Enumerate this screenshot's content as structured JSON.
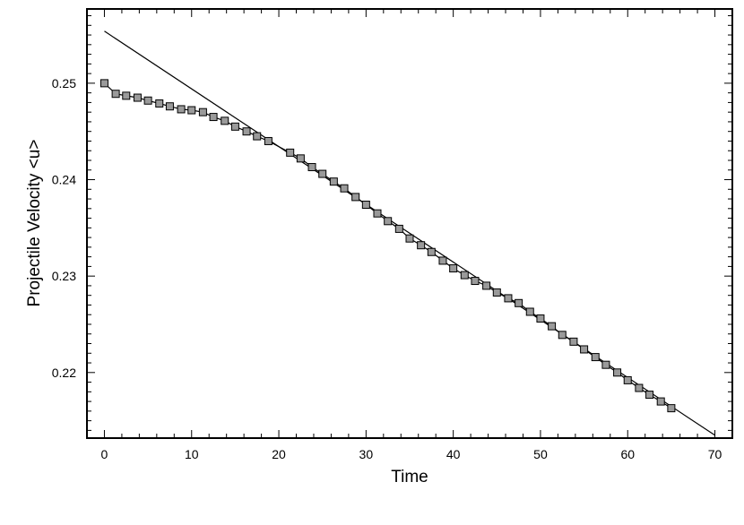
{
  "chart_data": {
    "type": "line",
    "title": "",
    "xlabel": "Time",
    "ylabel": "Projectile Velocity <u>",
    "xlim": [
      -2,
      72
    ],
    "ylim": [
      0.2132,
      0.2577
    ],
    "x_ticks": [
      0,
      10,
      20,
      30,
      40,
      50,
      60,
      70
    ],
    "x_tick_labels": [
      "0",
      "10",
      "20",
      "30",
      "40",
      "50",
      "60",
      "70"
    ],
    "y_ticks": [
      0.22,
      0.23,
      0.24,
      0.25
    ],
    "y_tick_labels": [
      "0.22",
      "0.23",
      "0.24",
      "0.25"
    ],
    "grid": false,
    "legend": null,
    "series": [
      {
        "style": "line-with-square-markers",
        "color": "#000000",
        "marker_fill": "#9a9a9a",
        "x": [
          0.0,
          1.3,
          2.5,
          3.8,
          5.0,
          6.3,
          7.5,
          8.8,
          10.0,
          11.3,
          12.5,
          13.8,
          15.0,
          16.3,
          17.5,
          18.8,
          21.3,
          22.5,
          23.8,
          25.0,
          26.3,
          27.5,
          28.8,
          30.0,
          31.3,
          32.5,
          33.8,
          35.0,
          36.3,
          37.5,
          38.8,
          40.0,
          41.3,
          42.5,
          43.8,
          45.0,
          46.3,
          47.5,
          48.8,
          50.0,
          51.3,
          52.5,
          53.8,
          55.0,
          56.3,
          57.5,
          58.8,
          60.0,
          61.3,
          62.5,
          63.8,
          65.0
        ],
        "y": [
          0.25,
          0.2489,
          0.2487,
          0.2485,
          0.2482,
          0.2479,
          0.2476,
          0.2473,
          0.2472,
          0.247,
          0.2465,
          0.2461,
          0.2455,
          0.245,
          0.2445,
          0.244,
          0.2428,
          0.2422,
          0.2413,
          0.2406,
          0.2398,
          0.2391,
          0.2382,
          0.2374,
          0.2365,
          0.2357,
          0.2349,
          0.2339,
          0.2332,
          0.2325,
          0.2316,
          0.2308,
          0.2301,
          0.2295,
          0.229,
          0.2283,
          0.2277,
          0.2272,
          0.2263,
          0.2256,
          0.2248,
          0.2239,
          0.2232,
          0.2224,
          0.2216,
          0.2208,
          0.22,
          0.2192,
          0.2184,
          0.2177,
          0.217,
          0.2163
        ]
      },
      {
        "style": "line",
        "color": "#000000",
        "x": [
          0,
          70
        ],
        "y": [
          0.2554,
          0.2135
        ]
      }
    ]
  }
}
